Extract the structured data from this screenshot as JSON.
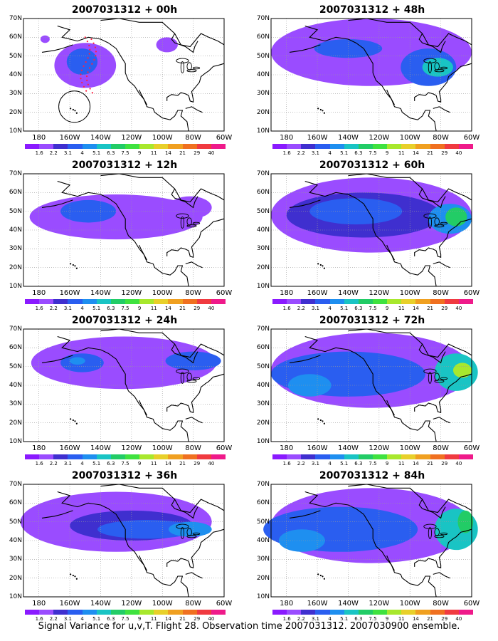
{
  "palette": [
    "#8a1aff",
    "#9a4cff",
    "#3f2fcf",
    "#2a5ef0",
    "#1e8ff0",
    "#19c4c4",
    "#22cc66",
    "#3fe23f",
    "#a8e82d",
    "#e8d02a",
    "#f0a020",
    "#f07020",
    "#f03a40",
    "#ef1a8a"
  ],
  "legend_labels": [
    "1.6",
    "2.2",
    "3.1",
    "4",
    "5.1",
    "6.3",
    "7.5",
    "9",
    "11",
    "14",
    "21",
    "29",
    "40"
  ],
  "lat_labels": [
    "70N",
    "60N",
    "50N",
    "40N",
    "30N",
    "20N",
    "10N"
  ],
  "lon_labels": [
    "180",
    "160W",
    "140W",
    "120W",
    "100W",
    "80W",
    "60W"
  ],
  "caption": "Signal Variance for u,v,T. Flight 28. Observation time 2007031312. 2007030900 ensemble.",
  "panels": [
    {
      "title": "2007031312 + 00h",
      "blobs": [
        {
          "cx": -150,
          "cy": 45,
          "rx": 20,
          "ry": 12,
          "level": 1
        },
        {
          "cx": -152,
          "cy": 47,
          "rx": 10,
          "ry": 7,
          "level": 3
        },
        {
          "cx": -97,
          "cy": 56,
          "rx": 7,
          "ry": 4,
          "level": 1
        },
        {
          "cx": -176,
          "cy": 59,
          "rx": 3,
          "ry": 2,
          "level": 1
        }
      ]
    },
    {
      "title": "2007031312 + 12h",
      "blobs": [
        {
          "cx": -130,
          "cy": 47,
          "rx": 56,
          "ry": 12,
          "level": 1
        },
        {
          "cx": -148,
          "cy": 50,
          "rx": 18,
          "ry": 6,
          "level": 3
        },
        {
          "cx": -82,
          "cy": 52,
          "rx": 14,
          "ry": 6,
          "level": 1
        }
      ]
    },
    {
      "title": "2007031312 + 24h",
      "blobs": [
        {
          "cx": -125,
          "cy": 52,
          "rx": 60,
          "ry": 14,
          "level": 1
        },
        {
          "cx": -152,
          "cy": 52,
          "rx": 14,
          "ry": 5,
          "level": 3
        },
        {
          "cx": -155,
          "cy": 53,
          "rx": 5,
          "ry": 2,
          "level": 4
        },
        {
          "cx": -80,
          "cy": 53,
          "rx": 18,
          "ry": 5,
          "level": 3
        }
      ]
    },
    {
      "title": "2007031312 + 36h",
      "blobs": [
        {
          "cx": -130,
          "cy": 50,
          "rx": 62,
          "ry": 16,
          "level": 1
        },
        {
          "cx": -120,
          "cy": 48,
          "rx": 40,
          "ry": 8,
          "level": 2
        },
        {
          "cx": -110,
          "cy": 46,
          "rx": 32,
          "ry": 5,
          "level": 3
        },
        {
          "cx": -82,
          "cy": 46,
          "rx": 14,
          "ry": 4,
          "level": 4
        }
      ]
    },
    {
      "title": "2007031312 + 48h",
      "blobs": [
        {
          "cx": -125,
          "cy": 52,
          "rx": 65,
          "ry": 18,
          "level": 1
        },
        {
          "cx": -140,
          "cy": 54,
          "rx": 22,
          "ry": 5,
          "level": 3
        },
        {
          "cx": -88,
          "cy": 44,
          "rx": 18,
          "ry": 10,
          "level": 3
        },
        {
          "cx": -82,
          "cy": 44,
          "rx": 10,
          "ry": 5,
          "level": 5
        }
      ]
    },
    {
      "title": "2007031312 + 60h",
      "blobs": [
        {
          "cx": -125,
          "cy": 48,
          "rx": 65,
          "ry": 20,
          "level": 1
        },
        {
          "cx": -130,
          "cy": 48,
          "rx": 50,
          "ry": 12,
          "level": 2
        },
        {
          "cx": -135,
          "cy": 50,
          "rx": 30,
          "ry": 7,
          "level": 3
        },
        {
          "cx": -74,
          "cy": 46,
          "rx": 14,
          "ry": 8,
          "level": 4
        },
        {
          "cx": -70,
          "cy": 47,
          "rx": 7,
          "ry": 5,
          "level": 6
        }
      ]
    },
    {
      "title": "2007031312 + 72h",
      "blobs": [
        {
          "cx": -125,
          "cy": 48,
          "rx": 65,
          "ry": 20,
          "level": 1
        },
        {
          "cx": -140,
          "cy": 46,
          "rx": 50,
          "ry": 12,
          "level": 3
        },
        {
          "cx": -165,
          "cy": 40,
          "rx": 14,
          "ry": 6,
          "level": 4
        },
        {
          "cx": -70,
          "cy": 47,
          "rx": 14,
          "ry": 10,
          "level": 5
        },
        {
          "cx": -66,
          "cy": 48,
          "rx": 6,
          "ry": 4,
          "level": 8
        }
      ]
    },
    {
      "title": "2007031312 + 84h",
      "blobs": [
        {
          "cx": -125,
          "cy": 48,
          "rx": 65,
          "ry": 20,
          "level": 1
        },
        {
          "cx": -145,
          "cy": 46,
          "rx": 50,
          "ry": 12,
          "level": 3
        },
        {
          "cx": -170,
          "cy": 40,
          "rx": 15,
          "ry": 6,
          "level": 4
        },
        {
          "cx": -70,
          "cy": 46,
          "rx": 14,
          "ry": 11,
          "level": 5
        },
        {
          "cx": -64,
          "cy": 50,
          "rx": 5,
          "ry": 6,
          "level": 6
        }
      ]
    }
  ]
}
